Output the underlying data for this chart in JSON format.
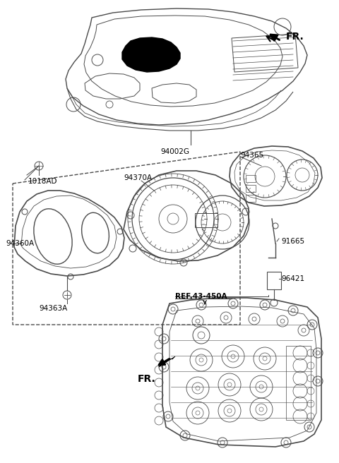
{
  "bg_color": "#ffffff",
  "line_color": "#4a4a4a",
  "text_color": "#000000",
  "figsize": [
    4.8,
    6.56
  ],
  "dpi": 100,
  "labels": {
    "FR_top": "FR.",
    "FR_bottom": "FR.",
    "94002G": "94002G",
    "94365": "94365",
    "1018AD": "1018AD",
    "94370A": "94370A",
    "94360A": "94360A",
    "94363A": "94363A",
    "91665": "91665",
    "96421": "96421",
    "REF": "REF.43-450A"
  }
}
